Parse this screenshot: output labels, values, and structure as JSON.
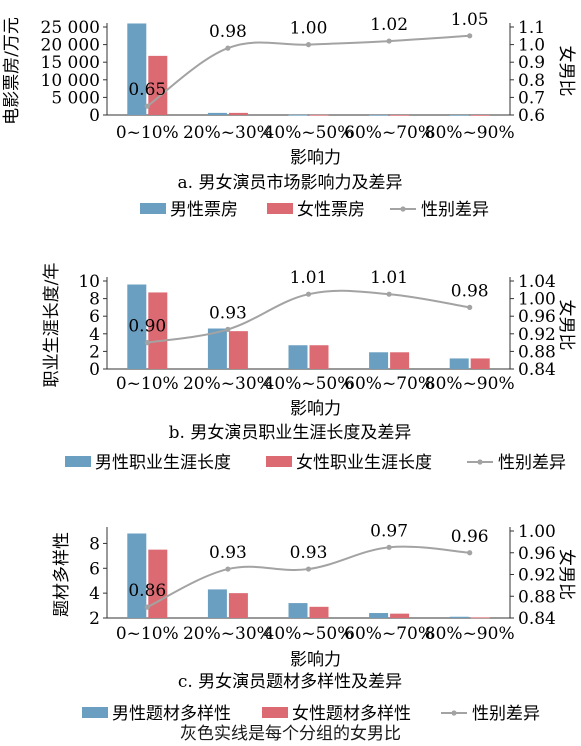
{
  "footnote": "灰色实线是每个分组的女男比",
  "colors": {
    "male": "#6a9fc1",
    "female": "#dc6a72",
    "ratio": "#a3a3a3"
  },
  "chart_data": [
    {
      "type": "bar",
      "title": "a. 男女演员市场影响力及差异",
      "xlabel": "影响力",
      "ylabel": "电影票房/万元",
      "y2label": "女男比",
      "categories": [
        "0~10%",
        "20%~30%",
        "40%~50%",
        "60%~70%",
        "80%~90%"
      ],
      "ylim": [
        0,
        25000
      ],
      "yticks": [
        "0",
        "5 000",
        "10 000",
        "15 000",
        "20 000",
        "25 000"
      ],
      "y2lim": [
        0.6,
        1.1
      ],
      "y2ticks": [
        "0.6",
        "0.7",
        "0.8",
        "0.9",
        "1.0",
        "1.1"
      ],
      "series": [
        {
          "name": "男性票房",
          "values": [
            26000,
            600,
            40,
            20,
            15
          ]
        },
        {
          "name": "女性票房",
          "values": [
            16800,
            600,
            35,
            18,
            12
          ]
        },
        {
          "name": "性别差异",
          "type": "line",
          "axis": "right",
          "values": [
            0.65,
            0.98,
            1.0,
            1.02,
            1.05
          ]
        }
      ],
      "point_labels": [
        "0.65",
        "0.98",
        "1.00",
        "1.02",
        "1.05"
      ],
      "legend": [
        "男性票房",
        "女性票房",
        "性别差异"
      ]
    },
    {
      "type": "bar",
      "title": "b. 男女演员职业生涯长度及差异",
      "xlabel": "影响力",
      "ylabel": "职业生涯长度/年",
      "y2label": "女男比",
      "categories": [
        "0~10%",
        "20%~30%",
        "40%~50%",
        "60%~70%",
        "80%~90%"
      ],
      "ylim": [
        0,
        10
      ],
      "yticks": [
        "0",
        "2",
        "4",
        "6",
        "8",
        "10"
      ],
      "y2lim": [
        0.84,
        1.04
      ],
      "y2ticks": [
        "0.84",
        "0.88",
        "0.92",
        "0.96",
        "1.00",
        "1.04"
      ],
      "series": [
        {
          "name": "男性职业生涯长度",
          "values": [
            9.6,
            4.6,
            2.7,
            1.9,
            1.2
          ]
        },
        {
          "name": "女性职业生涯长度",
          "values": [
            8.7,
            4.3,
            2.7,
            1.9,
            1.2
          ]
        },
        {
          "name": "性别差异",
          "type": "line",
          "axis": "right",
          "values": [
            0.9,
            0.93,
            1.01,
            1.01,
            0.98
          ]
        }
      ],
      "point_labels": [
        "0.90",
        "0.93",
        "1.01",
        "1.01",
        "0.98"
      ],
      "legend": [
        "男性职业生涯长度",
        "女性职业生涯长度",
        "性别差异"
      ]
    },
    {
      "type": "bar",
      "title": "c. 男女演员题材多样性及差异",
      "xlabel": "影响力",
      "ylabel": "题材多样性",
      "y2label": "女男比",
      "categories": [
        "0~10%",
        "20%~30%",
        "40%~50%",
        "60%~70%",
        "80%~90%"
      ],
      "ylim": [
        2,
        9
      ],
      "yticks": [
        "2",
        "4",
        "6",
        "8"
      ],
      "y2lim": [
        0.84,
        1.0
      ],
      "y2ticks": [
        "0.84",
        "0.88",
        "0.92",
        "0.96",
        "1.00"
      ],
      "series": [
        {
          "name": "男性题材多样性",
          "values": [
            8.8,
            4.3,
            3.2,
            2.4,
            2.1
          ]
        },
        {
          "name": "女性题材多样性",
          "values": [
            7.5,
            4.0,
            2.9,
            2.35,
            2.05
          ]
        },
        {
          "name": "性别差异",
          "type": "line",
          "axis": "right",
          "values": [
            0.86,
            0.93,
            0.93,
            0.97,
            0.96
          ]
        }
      ],
      "point_labels": [
        "0.86",
        "0.93",
        "0.93",
        "0.97",
        "0.96"
      ],
      "legend": [
        "男性题材多样性",
        "女性题材多样性",
        "性别差异"
      ]
    }
  ]
}
